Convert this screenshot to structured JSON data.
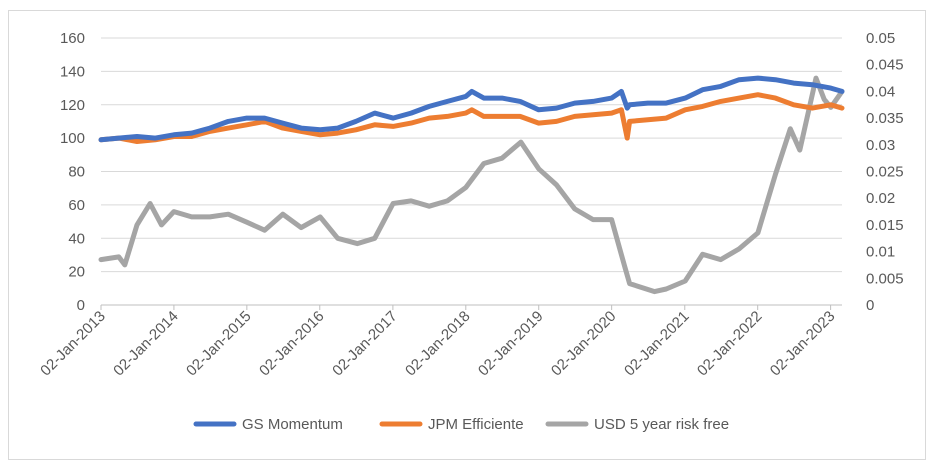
{
  "chart_data": {
    "type": "line",
    "title": "",
    "xlabel": "",
    "ylabel": "",
    "y_left_lim": [
      0,
      160
    ],
    "y_right_lim": [
      0,
      0.05
    ],
    "y_left_ticks": [
      "0",
      "20",
      "40",
      "60",
      "80",
      "100",
      "120",
      "140",
      "160"
    ],
    "y_right_ticks": [
      "0",
      "0.005",
      "0.01",
      "0.015",
      "0.02",
      "0.025",
      "0.03",
      "0.035",
      "0.04",
      "0.045",
      "0.05"
    ],
    "x_range": [
      "2013-01-02",
      "2023-02-28"
    ],
    "x_ticks": [
      "02-Jan-2013",
      "02-Jan-2014",
      "02-Jan-2015",
      "02-Jan-2016",
      "02-Jan-2017",
      "02-Jan-2018",
      "02-Jan-2019",
      "02-Jan-2020",
      "02-Jan-2021",
      "02-Jan-2022",
      "02-Jan-2023"
    ],
    "grid": "horizontal",
    "legend_position": "bottom",
    "series": [
      {
        "name": "GS Momentum",
        "axis": "left",
        "color": "#4472c4",
        "x": [
          "2013-01-02",
          "2013-04-01",
          "2013-07-01",
          "2013-10-01",
          "2014-01-02",
          "2014-04-01",
          "2014-07-01",
          "2014-10-01",
          "2015-01-02",
          "2015-04-01",
          "2015-07-01",
          "2015-10-01",
          "2016-01-04",
          "2016-04-01",
          "2016-07-01",
          "2016-10-03",
          "2017-01-03",
          "2017-04-03",
          "2017-07-03",
          "2017-10-02",
          "2018-01-02",
          "2018-02-01",
          "2018-04-02",
          "2018-07-02",
          "2018-10-01",
          "2019-01-02",
          "2019-04-01",
          "2019-07-01",
          "2019-10-01",
          "2020-01-02",
          "2020-02-20",
          "2020-03-20",
          "2020-04-01",
          "2020-07-01",
          "2020-10-01",
          "2021-01-04",
          "2021-04-01",
          "2021-07-01",
          "2021-10-01",
          "2022-01-03",
          "2022-04-01",
          "2022-07-01",
          "2022-10-03",
          "2023-01-03",
          "2023-02-28"
        ],
        "values": [
          99,
          100,
          101,
          100,
          102,
          103,
          106,
          110,
          112,
          112,
          109,
          106,
          105,
          106,
          110,
          115,
          112,
          115,
          119,
          122,
          125,
          128,
          124,
          124,
          122,
          117,
          118,
          121,
          122,
          124,
          128,
          118,
          120,
          121,
          121,
          124,
          129,
          131,
          135,
          136,
          135,
          133,
          132,
          130,
          128
        ]
      },
      {
        "name": "JPM Efficiente",
        "axis": "left",
        "color": "#ed7d31",
        "x": [
          "2013-01-02",
          "2013-04-01",
          "2013-07-01",
          "2013-10-01",
          "2014-01-02",
          "2014-04-01",
          "2014-07-01",
          "2014-10-01",
          "2015-01-02",
          "2015-04-01",
          "2015-07-01",
          "2015-10-01",
          "2016-01-04",
          "2016-04-01",
          "2016-07-01",
          "2016-10-03",
          "2017-01-03",
          "2017-04-03",
          "2017-07-03",
          "2017-10-02",
          "2018-01-02",
          "2018-02-01",
          "2018-04-02",
          "2018-07-02",
          "2018-10-01",
          "2019-01-02",
          "2019-04-01",
          "2019-07-01",
          "2019-10-01",
          "2020-01-02",
          "2020-02-20",
          "2020-03-20",
          "2020-04-01",
          "2020-07-01",
          "2020-10-01",
          "2021-01-04",
          "2021-04-01",
          "2021-07-01",
          "2021-10-01",
          "2022-01-03",
          "2022-04-01",
          "2022-07-01",
          "2022-10-03",
          "2023-01-03",
          "2023-02-28"
        ],
        "values": [
          99,
          100,
          98,
          99,
          101,
          101,
          104,
          106,
          108,
          110,
          106,
          104,
          102,
          103,
          105,
          108,
          107,
          109,
          112,
          113,
          115,
          117,
          113,
          113,
          113,
          109,
          110,
          113,
          114,
          115,
          117,
          100,
          110,
          111,
          112,
          117,
          119,
          122,
          124,
          126,
          124,
          120,
          118,
          120,
          118
        ]
      },
      {
        "name": "USD 5 year risk free",
        "axis": "right",
        "color": "#a5a5a5",
        "x": [
          "2013-01-02",
          "2013-04-01",
          "2013-05-01",
          "2013-07-01",
          "2013-09-05",
          "2013-11-01",
          "2014-01-02",
          "2014-04-01",
          "2014-07-01",
          "2014-10-01",
          "2015-01-02",
          "2015-04-01",
          "2015-07-01",
          "2015-10-01",
          "2016-01-04",
          "2016-04-01",
          "2016-07-08",
          "2016-10-03",
          "2017-01-03",
          "2017-04-03",
          "2017-07-03",
          "2017-10-02",
          "2018-01-02",
          "2018-04-02",
          "2018-07-02",
          "2018-10-05",
          "2019-01-02",
          "2019-04-01",
          "2019-07-01",
          "2019-10-01",
          "2020-01-02",
          "2020-03-09",
          "2020-04-01",
          "2020-08-04",
          "2020-10-01",
          "2021-01-04",
          "2021-04-01",
          "2021-07-01",
          "2021-10-01",
          "2022-01-03",
          "2022-04-01",
          "2022-06-14",
          "2022-08-01",
          "2022-10-21",
          "2022-12-01",
          "2023-01-03",
          "2023-02-28"
        ],
        "values": [
          0.0085,
          0.009,
          0.0075,
          0.015,
          0.019,
          0.015,
          0.0175,
          0.0165,
          0.0165,
          0.017,
          0.0155,
          0.014,
          0.017,
          0.0145,
          0.0165,
          0.0125,
          0.0115,
          0.0125,
          0.019,
          0.0195,
          0.0185,
          0.0195,
          0.022,
          0.0265,
          0.0275,
          0.0305,
          0.0255,
          0.0225,
          0.018,
          0.016,
          0.016,
          0.007,
          0.004,
          0.0025,
          0.003,
          0.0045,
          0.0095,
          0.0085,
          0.0105,
          0.0135,
          0.0245,
          0.033,
          0.029,
          0.0425,
          0.0385,
          0.037,
          0.04
        ]
      }
    ]
  }
}
